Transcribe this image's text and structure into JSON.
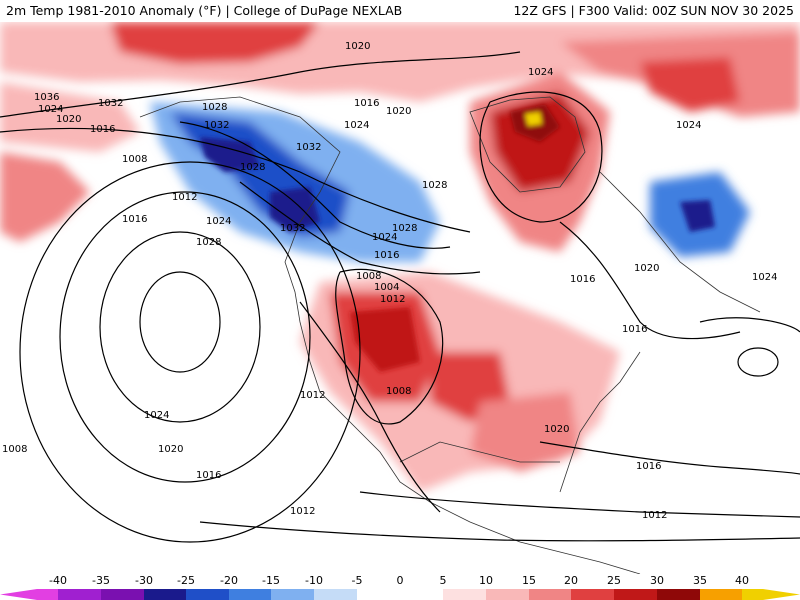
{
  "header": {
    "left": "2m Temp 1981-2010 Anomaly (°F) | College of DuPage NEXLAB",
    "right": "12Z GFS | F300 Valid: 00Z SUN NOV 30 2025"
  },
  "colors": {
    "neg_40": "#e23fe2",
    "neg_35": "#a020d0",
    "neg_30": "#7a10b0",
    "neg_25": "#1a1a8c",
    "neg_20": "#1f4fc8",
    "neg_15": "#3f7fe0",
    "neg_10": "#7fb0f0",
    "neg_5": "#c5dcf7",
    "zero": "#ffffff",
    "pos_5": "#fde0e0",
    "pos_10": "#f9b8b8",
    "pos_15": "#f08585",
    "pos_20": "#e04040",
    "pos_25": "#c01818",
    "pos_30": "#8f0808",
    "pos_35": "#f7a000",
    "pos_40": "#f0d000"
  },
  "colorbar": {
    "ticks": [
      "-40",
      "-35",
      "-30",
      "-25",
      "-20",
      "-15",
      "-10",
      "-5",
      "0",
      "5",
      "10",
      "15",
      "20",
      "25",
      "30",
      "35",
      "40"
    ]
  },
  "isobar_labels": [
    "1020",
    "1024",
    "1036",
    "1024",
    "1020",
    "1032",
    "1016",
    "1008",
    "1028",
    "1032",
    "1028",
    "1032",
    "1016",
    "1020",
    "1024",
    "1028",
    "1012",
    "1016",
    "1024",
    "1028",
    "1032",
    "1028",
    "1024",
    "1016",
    "1008",
    "1004",
    "1012",
    "1012",
    "1008",
    "1024",
    "1020",
    "1016",
    "1008",
    "1012",
    "1020",
    "1016",
    "1012",
    "1016",
    "1016",
    "1020",
    "1024",
    "1024"
  ]
}
